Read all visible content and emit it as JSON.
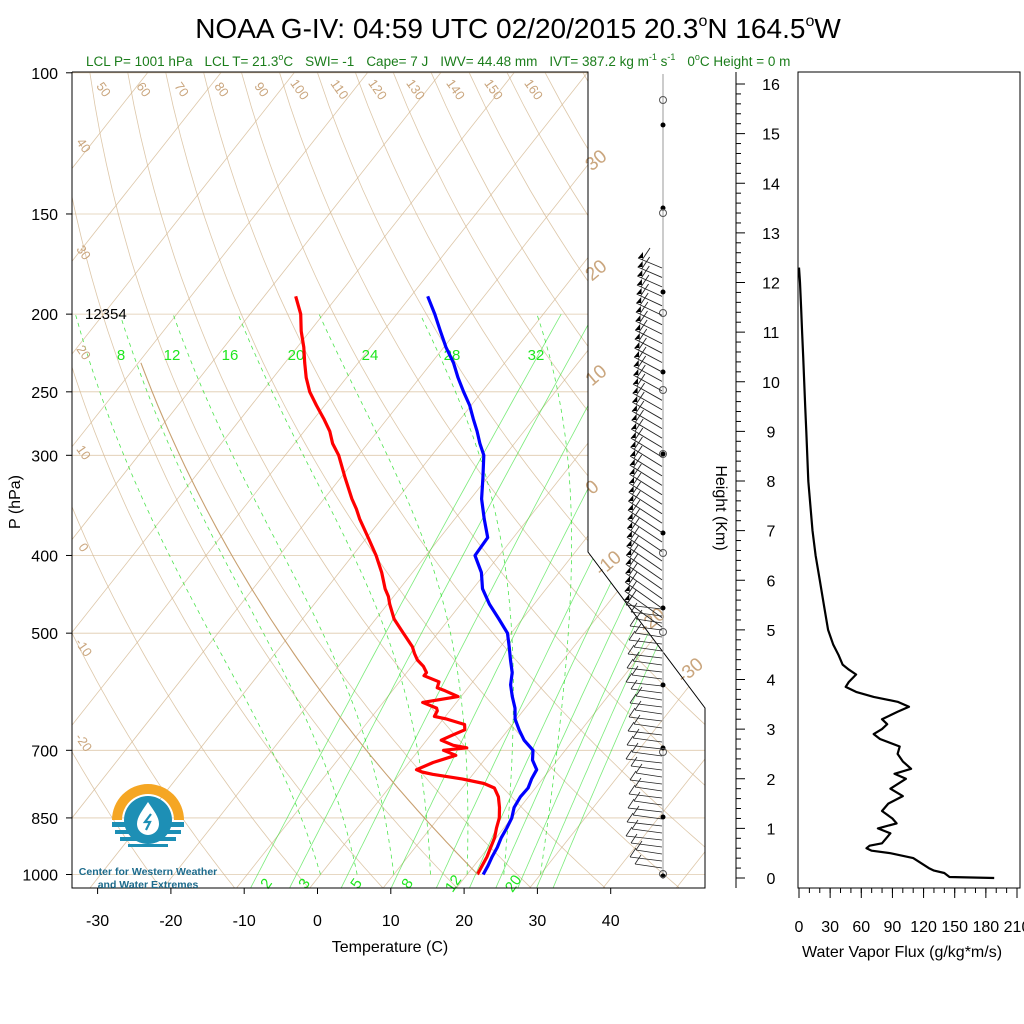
{
  "title": {
    "main": "NOAA G-IV: 04:59 UTC 02/20/2015  20.3",
    "deg1": "o",
    "lat": "N 164.5",
    "deg2": "o",
    "lon": "W"
  },
  "info": {
    "lcl_p": "LCL P= 1001 hPa",
    "lcl_t_pre": "LCL T= 21.3",
    "deg": "o",
    "lcl_t_post": "C",
    "swi": "SWI= -1",
    "cape": "Cape= 7 J",
    "iwv": "IWV= 44.48 mm",
    "ivt_pre": "IVT= 387.2 kg m",
    "exp1": "-1",
    "s_unit": " s",
    "exp2": "-1",
    "zero_pre": "0",
    "zero_deg": "o",
    "zero_post": "C Height = 0 m"
  },
  "skewt": {
    "xlabel": "Temperature (C)",
    "ylabel": "P (hPa)",
    "pressure_ticks": [
      100,
      150,
      200,
      250,
      300,
      400,
      500,
      700,
      850,
      1000
    ],
    "temp_ticks": [
      -30,
      -20,
      -10,
      0,
      10,
      20,
      30,
      40
    ],
    "station_id": "12354",
    "mixing_ratio_top_labels": [
      "8",
      "12",
      "16",
      "20",
      "24",
      "28",
      "32"
    ],
    "mixing_ratio_bottom_labels": [
      "2",
      "3",
      "5",
      "8",
      "12",
      "20"
    ],
    "dry_adiabat_labels": [
      "50",
      "60",
      "70",
      "80",
      "90",
      "100",
      "110",
      "120",
      "130",
      "140",
      "150",
      "160"
    ],
    "isotherm_left_labels": [
      "40",
      "30",
      "20",
      "10",
      "0",
      "-10",
      "-20"
    ],
    "isotherm_right_labels": [
      "30",
      "20",
      "10",
      "0",
      "-10",
      "-20",
      "-30"
    ],
    "colors": {
      "temperature": "#ff0000",
      "dewpoint": "#0000ff",
      "background_lines": "#d2b48c",
      "mixing_ratio": "#22dd22"
    }
  },
  "flux_panel": {
    "xlabel": "Water Vapor Flux (g/kg*m/s)",
    "ylabel": "Height (Km)",
    "x_ticks": [
      0,
      30,
      60,
      90,
      120,
      150,
      180,
      210
    ],
    "y_ticks": [
      0,
      1,
      2,
      3,
      4,
      5,
      6,
      7,
      8,
      9,
      10,
      11,
      12,
      13,
      14,
      15,
      16
    ]
  },
  "logo": {
    "line1": "Center for Western Weather",
    "line2": "and Water Extremes",
    "colors": {
      "sun": "#f5a623",
      "water": "#1d8fb5",
      "text": "#1d6b8c"
    }
  },
  "chart_data": [
    {
      "type": "line",
      "name": "skew-t",
      "y_axis": "pressure (hPa, log, inverted)",
      "x_axis": "temperature (C, skewed)",
      "ylim": [
        100,
        1050
      ],
      "xlim": [
        -35,
        50
      ],
      "series": [
        {
          "name": "Temperature",
          "pressure": [
            1000,
            975,
            950,
            925,
            900,
            875,
            850,
            825,
            800,
            780,
            770,
            760,
            750,
            745,
            740,
            725,
            710,
            700,
            695,
            690,
            680,
            670,
            660,
            650,
            640,
            635,
            625,
            620,
            610,
            600,
            590,
            585,
            575,
            565,
            560,
            550,
            540,
            530,
            520,
            500,
            480,
            460,
            450,
            440,
            420,
            400,
            380,
            360,
            350,
            340,
            320,
            300,
            290,
            280,
            270,
            260,
            250,
            240,
            230,
            220,
            210,
            200,
            190
          ],
          "temperature": [
            21.4,
            21.1,
            20.8,
            20.3,
            19.8,
            19.0,
            18.3,
            17.2,
            15.9,
            14.4,
            12.5,
            9.0,
            4.5,
            2.8,
            1.8,
            3.3,
            5.6,
            3.4,
            6.3,
            4.2,
            2.0,
            3.0,
            4.1,
            3.5,
            0.5,
            -1.5,
            -1.7,
            -2.1,
            -4.6,
            -0.4,
            -2.8,
            -4.2,
            -4.6,
            -7.3,
            -7.3,
            -8.4,
            -9.9,
            -11.0,
            -12.0,
            -14.7,
            -17.5,
            -19.7,
            -20.7,
            -22.0,
            -24.2,
            -26.8,
            -29.8,
            -33.0,
            -34.5,
            -36.2,
            -39.4,
            -42.7,
            -44.8,
            -46.5,
            -48.7,
            -51.1,
            -53.5,
            -55.5,
            -57.3,
            -59.1,
            -61.2,
            -63.1,
            -65.7
          ]
        },
        {
          "name": "Dewpoint",
          "pressure": [
            1000,
            975,
            950,
            925,
            900,
            875,
            850,
            825,
            800,
            780,
            760,
            740,
            720,
            700,
            680,
            660,
            640,
            620,
            600,
            580,
            560,
            540,
            520,
            500,
            480,
            460,
            440,
            420,
            400,
            380,
            360,
            340,
            320,
            300,
            290,
            280,
            270,
            260,
            250,
            240,
            230,
            220,
            210,
            200,
            190
          ],
          "temperature": [
            22.2,
            21.9,
            21.5,
            21.2,
            20.7,
            20.4,
            20.0,
            19.2,
            18.9,
            19.0,
            18.5,
            18.2,
            16.6,
            15.6,
            13.3,
            11.5,
            9.8,
            8.6,
            7.0,
            5.5,
            4.4,
            2.8,
            1.2,
            -0.5,
            -3.2,
            -6.1,
            -8.7,
            -10.6,
            -13.3,
            -13.5,
            -16.0,
            -18.5,
            -20.6,
            -22.9,
            -24.7,
            -26.4,
            -28.3,
            -30.2,
            -32.5,
            -34.8,
            -37.0,
            -39.7,
            -42.2,
            -44.8,
            -47.7
          ]
        }
      ]
    },
    {
      "type": "line",
      "name": "water-vapor-flux",
      "xlabel": "Water Vapor Flux (g/kg*m/s)",
      "ylabel": "Height (Km)",
      "xlim": [
        0,
        210
      ],
      "ylim": [
        0,
        16.5
      ],
      "series": [
        {
          "name": "Water Vapor Flux",
          "height_km": [
            0.0,
            0.02,
            0.1,
            0.15,
            0.2,
            0.4,
            0.5,
            0.55,
            0.6,
            0.65,
            0.7,
            0.9,
            1.0,
            1.1,
            1.2,
            1.35,
            1.5,
            1.65,
            1.8,
            2.0,
            2.1,
            2.2,
            2.35,
            2.5,
            2.65,
            2.8,
            2.9,
            3.0,
            3.1,
            3.2,
            3.35,
            3.45,
            3.55,
            3.65,
            3.75,
            3.85,
            3.95,
            4.1,
            4.2,
            4.3,
            4.5,
            4.7,
            5.0,
            5.5,
            6.0,
            6.5,
            7.0,
            7.5,
            8.0,
            8.5,
            9.0,
            9.5,
            10.0,
            10.5,
            11.0,
            11.5,
            12.0,
            12.3
          ],
          "flux": [
            188,
            145,
            140,
            130,
            125,
            110,
            88,
            70,
            65,
            68,
            80,
            88,
            76,
            94,
            90,
            80,
            86,
            100,
            88,
            103,
            92,
            108,
            100,
            95,
            97,
            78,
            72,
            80,
            85,
            80,
            95,
            106,
            95,
            72,
            55,
            45,
            48,
            55,
            48,
            42,
            38,
            33,
            28,
            24,
            20,
            16,
            13,
            11,
            9,
            8,
            7,
            6,
            5,
            4,
            3,
            2,
            1,
            0
          ]
        }
      ]
    }
  ]
}
